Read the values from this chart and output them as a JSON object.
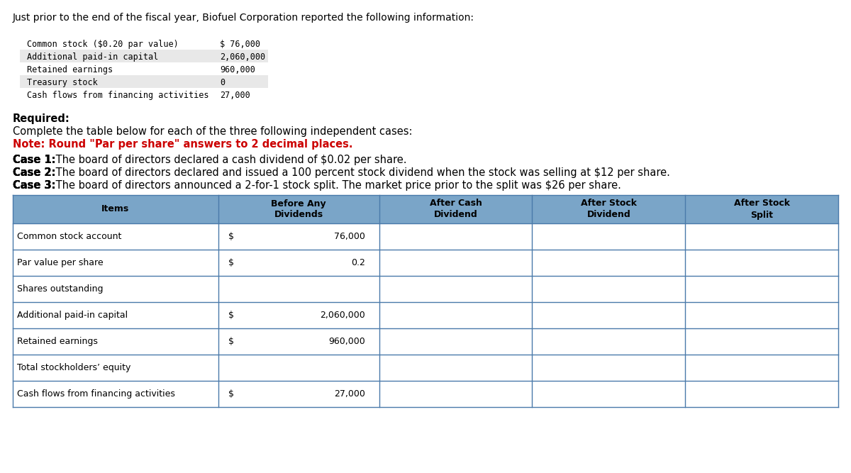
{
  "title": "Just prior to the end of the fiscal year, Biofuel Corporation reported the following information:",
  "info_labels": [
    "Common stock ($0.20 par value)",
    "Additional paid-in capital",
    "Retained earnings",
    "Treasury stock",
    "Cash flows from financing activities"
  ],
  "info_values": [
    "$ 76,000",
    "2,060,000",
    "960,000",
    "0",
    "27,000"
  ],
  "info_bg": [
    "#ffffff",
    "#e8e8e8",
    "#ffffff",
    "#e8e8e8",
    "#ffffff"
  ],
  "required_text": "Required:",
  "complete_text": "Complete the table below for each of the three following independent cases:",
  "note_text": "Note: Round \"Par per share\" answers to 2 decimal places.",
  "case1_bold": "Case 1:",
  "case1_rest": " The board of directors declared a cash dividend of $0.02 per share.",
  "case2_bold": "Case 2:",
  "case2_rest": " The board of directors declared and issued a 100 percent stock dividend when the stock was selling at $12 per share.",
  "case3_bold": "Case 3:",
  "case3_rest": " The board of directors announced a 2-for-1 stock split. The market price prior to the split was $26 per share.",
  "table_header": [
    "Items",
    "Before Any\nDividends",
    "After Cash\nDividend",
    "After Stock\nDividend",
    "After Stock\nSplit"
  ],
  "table_rows": [
    [
      "Common stock account",
      "$",
      "76,000",
      "",
      "",
      "",
      ""
    ],
    [
      "Par value per share",
      "$",
      "0.2",
      "",
      "",
      "",
      ""
    ],
    [
      "Shares outstanding",
      "",
      "",
      "",
      "",
      "",
      ""
    ],
    [
      "Additional paid-in capital",
      "$",
      "2,060,000",
      "",
      "",
      "",
      ""
    ],
    [
      "Retained earnings",
      "$",
      "960,000",
      "",
      "",
      "",
      ""
    ],
    [
      "Total stockholders’ equity",
      "",
      "",
      "",
      "",
      "",
      ""
    ],
    [
      "Cash flows from financing activities",
      "$",
      "27,000",
      "",
      "",
      "",
      ""
    ]
  ],
  "header_bg": "#7aa5c8",
  "border_color": "#4a7aaa",
  "note_color": "#cc0000",
  "monospace_font": "DejaVu Sans Mono",
  "regular_font": "DejaVu Sans"
}
